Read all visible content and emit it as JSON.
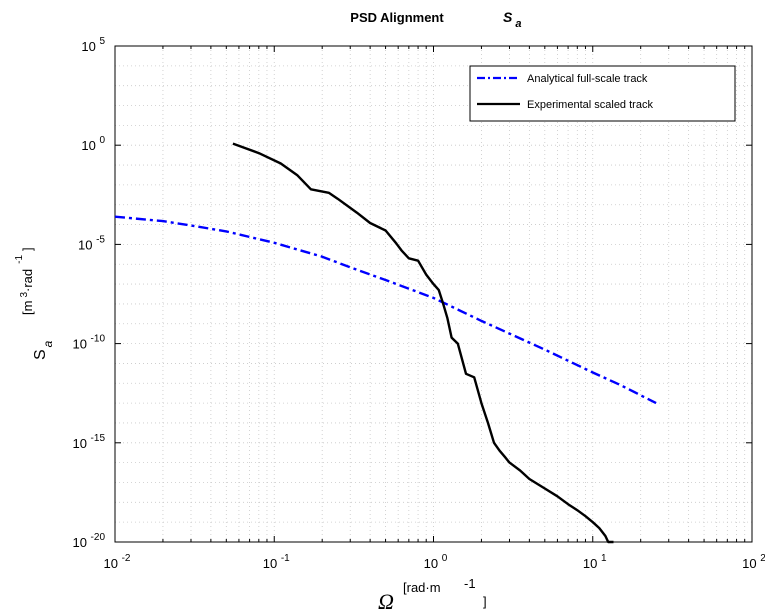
{
  "chart_data": {
    "type": "line",
    "title": "PSD Alignment",
    "title_symbol": "S",
    "title_symbol_sub": "a",
    "xlabel_symbol": "Ω",
    "xlabel_unit": "[rad·m",
    "xlabel_unit_exp": "-1",
    "xlabel_unit_close": "]",
    "ylabel_symbol": "S",
    "ylabel_symbol_sub": "a",
    "ylabel_unit_open": "[m",
    "ylabel_unit_exp1": "3",
    "ylabel_unit_mid": "·rad",
    "ylabel_unit_exp2": "-1",
    "ylabel_unit_close": "]",
    "xscale": "log",
    "yscale": "log",
    "xlim": [
      0.01,
      100
    ],
    "ylim": [
      1e-20,
      100000.0
    ],
    "grid": true,
    "legend_position": "top-right",
    "xticks": [
      {
        "base": "10",
        "exp": "-2"
      },
      {
        "base": "10",
        "exp": "-1"
      },
      {
        "base": "10",
        "exp": "0"
      },
      {
        "base": "10",
        "exp": "1"
      },
      {
        "base": "10",
        "exp": "2"
      }
    ],
    "yticks": [
      {
        "base": "10",
        "exp": "5"
      },
      {
        "base": "10",
        "exp": "0"
      },
      {
        "base": "10",
        "exp": "-5"
      },
      {
        "base": "10",
        "exp": "-10"
      },
      {
        "base": "10",
        "exp": "-15"
      },
      {
        "base": "10",
        "exp": "-20"
      }
    ],
    "series": [
      {
        "name": "Analytical full-scale track",
        "color": "#0000ff",
        "style": "dashdot",
        "x": [
          0.01,
          0.02,
          0.03,
          0.05,
          0.1,
          0.2,
          0.3,
          0.5,
          1,
          2,
          3,
          5,
          10,
          15,
          25
        ],
        "y": [
          0.00025,
          0.00015,
          9e-05,
          4.5e-05,
          1.2e-05,
          2.4e-06,
          7e-07,
          1.6e-07,
          2e-08,
          1.4e-09,
          3.2e-10,
          5e-11,
          3.5e-12,
          8e-13,
          1e-13
        ]
      },
      {
        "name": "Experimental scaled track",
        "color": "#000000",
        "style": "solid",
        "x": [
          0.055,
          0.08,
          0.11,
          0.14,
          0.17,
          0.22,
          0.25,
          0.33,
          0.4,
          0.5,
          0.58,
          0.63,
          0.7,
          0.8,
          0.9,
          1.0,
          1.08,
          1.15,
          1.22,
          1.3,
          1.42,
          1.6,
          1.8,
          2.0,
          2.2,
          2.4,
          2.6,
          2.8,
          3.0,
          3.5,
          4,
          5,
          6,
          7,
          8,
          9,
          10,
          11,
          12,
          12.5,
          13,
          13.5
        ],
        "y": [
          1.2,
          0.4,
          0.12,
          0.03,
          0.006,
          0.004,
          0.002,
          0.0004,
          0.00012,
          5e-05,
          1.2e-05,
          5e-06,
          2e-06,
          1.5e-06,
          3e-07,
          1e-07,
          5e-08,
          1e-08,
          2e-09,
          2e-10,
          1e-10,
          3e-12,
          2e-12,
          1e-13,
          1e-14,
          1e-15,
          4e-16,
          2e-16,
          1e-16,
          4e-17,
          1.5e-17,
          5e-18,
          2e-18,
          8e-19,
          4e-19,
          2e-19,
          1e-19,
          5e-20,
          2e-20,
          1e-20,
          5e-21,
          1e-23
        ]
      }
    ]
  }
}
